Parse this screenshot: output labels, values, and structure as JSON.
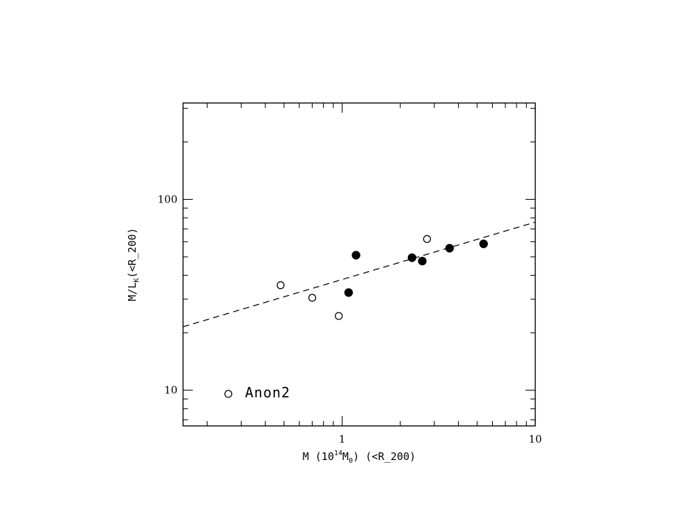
{
  "chart_data": {
    "type": "scatter",
    "xscale": "log",
    "yscale": "log",
    "xlim": [
      0.15,
      10
    ],
    "ylim": [
      6.5,
      320
    ],
    "x_tick_labels": [
      {
        "value": 1,
        "label": "1"
      },
      {
        "value": 10,
        "label": "10"
      }
    ],
    "y_tick_labels": [
      {
        "value": 10,
        "label": "10"
      },
      {
        "value": 100,
        "label": "100"
      }
    ],
    "xlabel": {
      "prefix": "M (10",
      "sup": "14",
      "mid": "M",
      "sub": "0",
      "suffix": ") (<R_200)"
    },
    "ylabel": {
      "prefix": "M/L",
      "sub": "K",
      "suffix": "(<R_200)"
    },
    "series": [
      {
        "name": "Anon2",
        "marker": "open-circle",
        "points": [
          {
            "x": 0.48,
            "y": 35.5
          },
          {
            "x": 0.7,
            "y": 30.5
          },
          {
            "x": 0.96,
            "y": 24.5
          },
          {
            "x": 2.75,
            "y": 62
          }
        ]
      },
      {
        "marker": "filled-circle",
        "points": [
          {
            "x": 1.08,
            "y": 32.5
          },
          {
            "x": 1.18,
            "y": 51
          },
          {
            "x": 2.3,
            "y": 49.5
          },
          {
            "x": 2.6,
            "y": 47.5
          },
          {
            "x": 3.6,
            "y": 55.5
          },
          {
            "x": 5.4,
            "y": 58.5
          }
        ]
      }
    ],
    "fit_line": {
      "style": "dashed",
      "points": [
        {
          "x": 0.15,
          "y": 21.5
        },
        {
          "x": 10,
          "y": 76
        }
      ]
    },
    "legend": {
      "placement": "bottom-left",
      "label": "Anon2"
    },
    "grid": false
  }
}
